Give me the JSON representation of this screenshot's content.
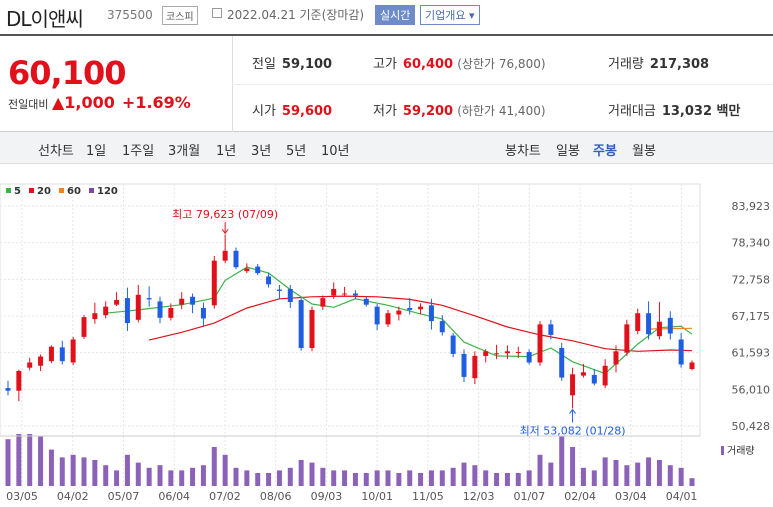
{
  "header": {
    "name": "DL이앤씨",
    "code": "375500",
    "market": "코스피",
    "date": "2022.04.21 기준(장마감)",
    "realtime": "실시간",
    "company_info": "기업개요 ▾"
  },
  "summary": {
    "price": "60,100",
    "change_label": "전일대비",
    "change_arrow": "▲",
    "change": "1,000",
    "change_pct": "+1.69%",
    "prev_label": "전일",
    "prev": "59,100",
    "open_label": "시가",
    "open": "59,600",
    "high_label": "고가",
    "high": "60,400",
    "upper_limit": "(상한가 76,800)",
    "low_label": "저가",
    "low": "59,200",
    "lower_limit": "(하한가 41,400)",
    "volume_label": "거래량",
    "volume": "217,308",
    "value_label": "거래대금",
    "value": "13,032 백만"
  },
  "periods": {
    "line_label": "선차트",
    "items": [
      "1일",
      "1주일",
      "3개월",
      "1년",
      "3년",
      "5년",
      "10년"
    ],
    "candle_label": "봉차트",
    "candle_items": [
      "일봉",
      "주봉",
      "월봉"
    ],
    "active": "주봉"
  },
  "colors": {
    "up": "#e0111b",
    "down": "#1f5ee0",
    "ma5": "#3cb44b",
    "ma20": "#e0111b",
    "ma60": "#f58220",
    "ma120": "#7b4aa0",
    "volume": "#8c62b8"
  },
  "chart_data": {
    "type": "candlestick",
    "legend": [
      "5",
      "20",
      "60",
      "120"
    ],
    "y_ticks": [
      83923,
      78340,
      72758,
      67175,
      61593,
      56010,
      50428
    ],
    "ylim": [
      50428,
      83923
    ],
    "x_ticks": [
      "03/05",
      "04/02",
      "05/07",
      "06/04",
      "07/02",
      "08/06",
      "09/03",
      "10/01",
      "11/05",
      "12/03",
      "01/07",
      "02/04",
      "03/04",
      "04/01"
    ],
    "annotations": {
      "high_text": "최고 79,623 (07/09)",
      "low_text": "최저 53,082 (01/28)"
    },
    "volume_label": "거래량",
    "candles": [
      {
        "o": 56200,
        "h": 57300,
        "l": 55100,
        "c": 55800,
        "v": 0.9
      },
      {
        "o": 55800,
        "h": 59000,
        "l": 54200,
        "c": 58800,
        "v": 1.0
      },
      {
        "o": 59300,
        "h": 60800,
        "l": 58900,
        "c": 60100,
        "v": 1.0
      },
      {
        "o": 59600,
        "h": 61300,
        "l": 58800,
        "c": 61000,
        "v": 0.95
      },
      {
        "o": 60300,
        "h": 62700,
        "l": 60000,
        "c": 62500,
        "v": 0.7
      },
      {
        "o": 62400,
        "h": 63400,
        "l": 59800,
        "c": 60300,
        "v": 0.55
      },
      {
        "o": 60100,
        "h": 64000,
        "l": 59700,
        "c": 63600,
        "v": 0.6
      },
      {
        "o": 64000,
        "h": 67300,
        "l": 63700,
        "c": 67000,
        "v": 0.55
      },
      {
        "o": 66700,
        "h": 69200,
        "l": 66000,
        "c": 67600,
        "v": 0.5
      },
      {
        "o": 67300,
        "h": 69400,
        "l": 66800,
        "c": 68600,
        "v": 0.4
      },
      {
        "o": 68900,
        "h": 70800,
        "l": 68700,
        "c": 69600,
        "v": 0.3
      },
      {
        "o": 69900,
        "h": 71500,
        "l": 64900,
        "c": 66100,
        "v": 0.6
      },
      {
        "o": 66600,
        "h": 71900,
        "l": 66200,
        "c": 70400,
        "v": 0.45
      },
      {
        "o": 69900,
        "h": 71700,
        "l": 68600,
        "c": 69700,
        "v": 0.35
      },
      {
        "o": 69400,
        "h": 70100,
        "l": 66100,
        "c": 66900,
        "v": 0.4
      },
      {
        "o": 66900,
        "h": 69100,
        "l": 66500,
        "c": 68400,
        "v": 0.3
      },
      {
        "o": 68900,
        "h": 70800,
        "l": 68200,
        "c": 69800,
        "v": 0.3
      },
      {
        "o": 70100,
        "h": 70600,
        "l": 67600,
        "c": 68900,
        "v": 0.35
      },
      {
        "o": 68400,
        "h": 69200,
        "l": 65600,
        "c": 66800,
        "v": 0.4
      },
      {
        "o": 68800,
        "h": 76300,
        "l": 68300,
        "c": 75600,
        "v": 0.75
      },
      {
        "o": 75600,
        "h": 79600,
        "l": 75200,
        "c": 77100,
        "v": 0.6
      },
      {
        "o": 77100,
        "h": 77600,
        "l": 74300,
        "c": 74600,
        "v": 0.35
      },
      {
        "o": 74000,
        "h": 75200,
        "l": 73700,
        "c": 74400,
        "v": 0.3
      },
      {
        "o": 74700,
        "h": 75100,
        "l": 73400,
        "c": 73700,
        "v": 0.25
      },
      {
        "o": 73200,
        "h": 73800,
        "l": 71500,
        "c": 72000,
        "v": 0.25
      },
      {
        "o": 71200,
        "h": 71900,
        "l": 69800,
        "c": 71000,
        "v": 0.3
      },
      {
        "o": 71300,
        "h": 71900,
        "l": 68400,
        "c": 69300,
        "v": 0.35
      },
      {
        "o": 69600,
        "h": 69900,
        "l": 61900,
        "c": 62300,
        "v": 0.5
      },
      {
        "o": 62300,
        "h": 68600,
        "l": 61800,
        "c": 68100,
        "v": 0.45
      },
      {
        "o": 68600,
        "h": 70300,
        "l": 68100,
        "c": 69900,
        "v": 0.35
      },
      {
        "o": 70300,
        "h": 72300,
        "l": 69800,
        "c": 71300,
        "v": 0.3
      },
      {
        "o": 70600,
        "h": 71600,
        "l": 70200,
        "c": 70600,
        "v": 0.3
      },
      {
        "o": 70600,
        "h": 71100,
        "l": 69800,
        "c": 70300,
        "v": 0.25
      },
      {
        "o": 69800,
        "h": 70200,
        "l": 68600,
        "c": 68900,
        "v": 0.25
      },
      {
        "o": 68600,
        "h": 69000,
        "l": 65000,
        "c": 65900,
        "v": 0.3
      },
      {
        "o": 65900,
        "h": 68100,
        "l": 65500,
        "c": 67600,
        "v": 0.3
      },
      {
        "o": 67400,
        "h": 68600,
        "l": 66500,
        "c": 68000,
        "v": 0.25
      },
      {
        "o": 68400,
        "h": 69900,
        "l": 67400,
        "c": 68100,
        "v": 0.3
      },
      {
        "o": 68200,
        "h": 69100,
        "l": 67400,
        "c": 68600,
        "v": 0.25
      },
      {
        "o": 68800,
        "h": 69800,
        "l": 65100,
        "c": 66400,
        "v": 0.3
      },
      {
        "o": 66400,
        "h": 67300,
        "l": 64200,
        "c": 64700,
        "v": 0.3
      },
      {
        "o": 64200,
        "h": 64600,
        "l": 60900,
        "c": 61400,
        "v": 0.35
      },
      {
        "o": 61400,
        "h": 62100,
        "l": 57100,
        "c": 57900,
        "v": 0.45
      },
      {
        "o": 57700,
        "h": 61800,
        "l": 56800,
        "c": 61100,
        "v": 0.4
      },
      {
        "o": 61100,
        "h": 62100,
        "l": 60100,
        "c": 61800,
        "v": 0.3
      },
      {
        "o": 61500,
        "h": 62800,
        "l": 60600,
        "c": 61500,
        "v": 0.25
      },
      {
        "o": 61500,
        "h": 62700,
        "l": 60600,
        "c": 61800,
        "v": 0.25
      },
      {
        "o": 61600,
        "h": 62500,
        "l": 60800,
        "c": 61700,
        "v": 0.25
      },
      {
        "o": 61700,
        "h": 62100,
        "l": 59800,
        "c": 60100,
        "v": 0.3
      },
      {
        "o": 60100,
        "h": 66400,
        "l": 59600,
        "c": 65900,
        "v": 0.6
      },
      {
        "o": 65900,
        "h": 66600,
        "l": 63600,
        "c": 64300,
        "v": 0.45
      },
      {
        "o": 62300,
        "h": 63100,
        "l": 57300,
        "c": 57800,
        "v": 0.95
      },
      {
        "o": 55100,
        "h": 59300,
        "l": 53100,
        "c": 58300,
        "v": 0.75
      },
      {
        "o": 58100,
        "h": 59900,
        "l": 57800,
        "c": 58600,
        "v": 0.35
      },
      {
        "o": 58200,
        "h": 59100,
        "l": 56600,
        "c": 56900,
        "v": 0.3
      },
      {
        "o": 56600,
        "h": 60600,
        "l": 56200,
        "c": 59600,
        "v": 0.55
      },
      {
        "o": 59800,
        "h": 62700,
        "l": 58600,
        "c": 61800,
        "v": 0.5
      },
      {
        "o": 61600,
        "h": 66600,
        "l": 61100,
        "c": 65900,
        "v": 0.4
      },
      {
        "o": 64900,
        "h": 68300,
        "l": 64400,
        "c": 67600,
        "v": 0.45
      },
      {
        "o": 67600,
        "h": 69400,
        "l": 63600,
        "c": 64400,
        "v": 0.55
      },
      {
        "o": 64100,
        "h": 69300,
        "l": 63600,
        "c": 66300,
        "v": 0.5
      },
      {
        "o": 66900,
        "h": 67900,
        "l": 63600,
        "c": 64500,
        "v": 0.4
      },
      {
        "o": 63600,
        "h": 64600,
        "l": 59300,
        "c": 59800,
        "v": 0.35
      },
      {
        "o": 59100,
        "h": 60400,
        "l": 58900,
        "c": 60100,
        "v": 0.15
      }
    ],
    "ma5": [
      [
        9,
        67600
      ],
      [
        12,
        68100
      ],
      [
        16,
        68900
      ],
      [
        19,
        69900
      ],
      [
        20,
        72600
      ],
      [
        22,
        74600
      ],
      [
        24,
        73700
      ],
      [
        26,
        71200
      ],
      [
        28,
        69000
      ],
      [
        30,
        68500
      ],
      [
        32,
        69800
      ],
      [
        35,
        68800
      ],
      [
        38,
        67500
      ],
      [
        40,
        66700
      ],
      [
        42,
        63200
      ],
      [
        45,
        61100
      ],
      [
        48,
        61000
      ],
      [
        50,
        62300
      ],
      [
        52,
        60200
      ],
      [
        55,
        58400
      ],
      [
        58,
        62900
      ],
      [
        60,
        65400
      ],
      [
        62,
        65600
      ],
      [
        63,
        64400
      ]
    ],
    "ma20": [
      [
        13,
        63500
      ],
      [
        16,
        64700
      ],
      [
        19,
        66100
      ],
      [
        22,
        68400
      ],
      [
        25,
        69800
      ],
      [
        28,
        70100
      ],
      [
        31,
        70200
      ],
      [
        34,
        70100
      ],
      [
        37,
        69700
      ],
      [
        40,
        68800
      ],
      [
        43,
        67200
      ],
      [
        46,
        65500
      ],
      [
        49,
        64300
      ],
      [
        52,
        63400
      ],
      [
        55,
        62200
      ],
      [
        58,
        61800
      ],
      [
        61,
        62000
      ],
      [
        63,
        61900
      ]
    ],
    "ma60": [
      [
        59,
        65200
      ],
      [
        63,
        65300
      ]
    ]
  }
}
